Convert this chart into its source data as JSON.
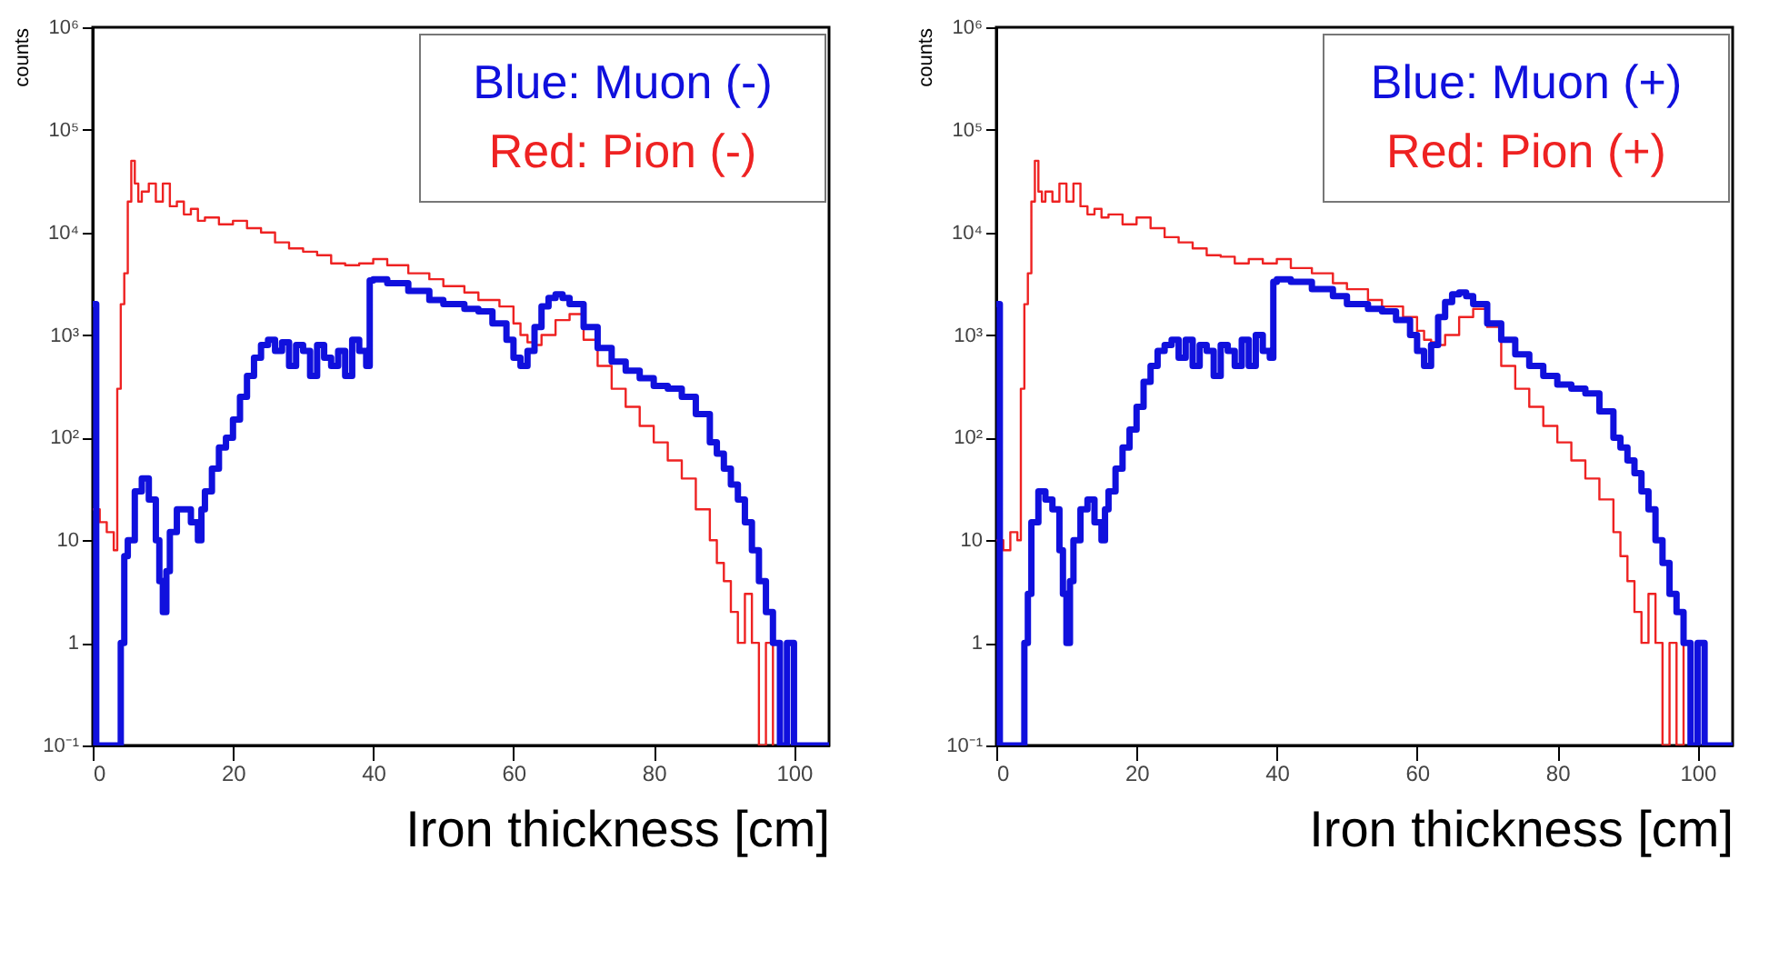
{
  "chart_data": [
    {
      "type": "step",
      "xlabel": "Iron thickness [cm]",
      "ylabel": "counts",
      "log": "y",
      "legend": "top right",
      "grid": false,
      "xlim": [
        0,
        105
      ],
      "xticks": [
        0,
        20,
        40,
        60,
        80,
        100
      ],
      "ylim": [
        0.1,
        1000000
      ],
      "yticks": [
        {
          "value": 0.1,
          "label": "10⁻¹"
        },
        1,
        10,
        {
          "value": 100,
          "label": "10²"
        },
        {
          "value": 1000,
          "label": "10³"
        },
        {
          "value": 10000,
          "label": "10⁴"
        },
        {
          "value": 100000,
          "label": "10⁵"
        },
        {
          "value": 1000000,
          "label": "10⁶"
        }
      ],
      "series": [
        {
          "name": "Red: Pion (-)",
          "color": "#ee2222",
          "x": [
            0,
            1,
            2,
            3,
            3.5,
            4,
            4.5,
            5,
            5.5,
            6,
            6.5,
            7,
            8,
            9,
            10,
            11,
            12,
            13,
            14,
            15,
            16,
            18,
            20,
            22,
            24,
            26,
            28,
            30,
            32,
            34,
            36,
            38,
            40,
            42,
            45,
            48,
            50,
            53,
            55,
            58,
            60,
            61,
            62,
            63,
            64,
            66,
            68,
            70,
            72,
            74,
            76,
            78,
            80,
            82,
            84,
            86,
            88,
            89,
            90,
            91,
            92,
            93,
            94,
            95,
            96,
            97
          ],
          "values": [
            20,
            15,
            12,
            8,
            300,
            2000,
            4000,
            20000,
            50000,
            30000,
            20000,
            25000,
            30000,
            20000,
            30000,
            18000,
            20000,
            15000,
            17000,
            13000,
            14000,
            12000,
            13000,
            11000,
            10000,
            8000,
            7000,
            6500,
            6000,
            5000,
            4800,
            5000,
            5500,
            4800,
            4000,
            3500,
            3000,
            2600,
            2200,
            1900,
            1300,
            1000,
            850,
            800,
            1000,
            1400,
            1600,
            900,
            500,
            300,
            200,
            130,
            90,
            60,
            40,
            20,
            10,
            6,
            4,
            2,
            1,
            3,
            1,
            0.1,
            1,
            0.1
          ]
        },
        {
          "name": "Blue: Muon (-)",
          "color": "#1010dd",
          "x": [
            0,
            0.5,
            4,
            4.5,
            5,
            6,
            7,
            8,
            9,
            9.5,
            10,
            10.5,
            11,
            12,
            13,
            14,
            15,
            15.5,
            16,
            17,
            18,
            19,
            20,
            21,
            22,
            23,
            24,
            25,
            26,
            27,
            28,
            29,
            30,
            31,
            32,
            33,
            34,
            35,
            36,
            37,
            38,
            39,
            39.5,
            40,
            42,
            45,
            48,
            50,
            53,
            55,
            57,
            59,
            60,
            61,
            62,
            63,
            64,
            65,
            66,
            67,
            68,
            70,
            72,
            74,
            76,
            78,
            80,
            82,
            84,
            86,
            88,
            89,
            90,
            91,
            92,
            93,
            94,
            95,
            96,
            97,
            98,
            99,
            100,
            101,
            105
          ],
          "values": [
            2000,
            0.1,
            1,
            7,
            10,
            30,
            40,
            25,
            10,
            4,
            2,
            5,
            12,
            20,
            20,
            15,
            10,
            20,
            30,
            50,
            80,
            100,
            150,
            250,
            400,
            600,
            800,
            900,
            700,
            850,
            500,
            800,
            700,
            400,
            800,
            600,
            500,
            700,
            400,
            900,
            700,
            500,
            3400,
            3500,
            3200,
            2700,
            2200,
            2000,
            1800,
            1700,
            1300,
            900,
            600,
            500,
            700,
            1200,
            1900,
            2300,
            2500,
            2300,
            2000,
            1200,
            750,
            550,
            450,
            380,
            320,
            300,
            250,
            170,
            90,
            70,
            50,
            35,
            25,
            15,
            8,
            4,
            2,
            1,
            0.1,
            1,
            0.1,
            0.1,
            0.1
          ]
        }
      ]
    },
    {
      "type": "step",
      "xlabel": "Iron thickness [cm]",
      "ylabel": "counts",
      "log": "y",
      "legend": "top right",
      "grid": false,
      "xlim": [
        0,
        105
      ],
      "xticks": [
        0,
        20,
        40,
        60,
        80,
        100
      ],
      "ylim": [
        0.1,
        1000000
      ],
      "yticks": [
        {
          "value": 0.1,
          "label": "10⁻¹"
        },
        1,
        10,
        {
          "value": 100,
          "label": "10²"
        },
        {
          "value": 1000,
          "label": "10³"
        },
        {
          "value": 10000,
          "label": "10⁴"
        },
        {
          "value": 100000,
          "label": "10⁵"
        },
        {
          "value": 1000000,
          "label": "10⁶"
        }
      ],
      "series": [
        {
          "name": "Red: Pion (+)",
          "color": "#ee2222",
          "x": [
            0,
            1,
            2,
            3,
            3.5,
            4,
            4.5,
            5,
            5.5,
            6,
            6.5,
            7,
            8,
            9,
            10,
            11,
            12,
            13,
            14,
            15,
            16,
            18,
            20,
            22,
            24,
            26,
            28,
            30,
            32,
            34,
            36,
            38,
            40,
            42,
            45,
            48,
            50,
            53,
            55,
            58,
            60,
            61,
            62,
            63,
            64,
            66,
            68,
            70,
            72,
            74,
            76,
            78,
            80,
            82,
            84,
            86,
            88,
            89,
            90,
            91,
            92,
            93,
            94,
            95,
            96,
            97,
            98
          ],
          "values": [
            10,
            8,
            12,
            10,
            300,
            2000,
            4000,
            20000,
            50000,
            25000,
            20000,
            25000,
            20000,
            30000,
            20000,
            30000,
            18000,
            15000,
            17000,
            14000,
            15000,
            12000,
            14000,
            11000,
            9000,
            8000,
            7000,
            6000,
            5800,
            5000,
            5500,
            5000,
            5500,
            4500,
            4000,
            3200,
            2800,
            2200,
            1900,
            1500,
            1100,
            900,
            850,
            800,
            1000,
            1500,
            1800,
            1200,
            500,
            300,
            200,
            130,
            90,
            60,
            40,
            25,
            12,
            7,
            4,
            2,
            1,
            3,
            1,
            0.1,
            1,
            0.1,
            1
          ]
        },
        {
          "name": "Blue: Muon (+)",
          "color": "#1010dd",
          "x": [
            0,
            0.5,
            4,
            4.5,
            5,
            6,
            7,
            8,
            9,
            9.5,
            10,
            10.5,
            11,
            12,
            13,
            14,
            15,
            15.5,
            16,
            17,
            18,
            19,
            20,
            21,
            22,
            23,
            24,
            25,
            26,
            27,
            28,
            29,
            30,
            31,
            32,
            33,
            34,
            35,
            36,
            37,
            38,
            39,
            39.5,
            40,
            42,
            45,
            48,
            50,
            53,
            55,
            57,
            59,
            60,
            61,
            62,
            63,
            64,
            65,
            66,
            67,
            68,
            70,
            72,
            74,
            76,
            78,
            80,
            82,
            84,
            86,
            88,
            89,
            90,
            91,
            92,
            93,
            94,
            95,
            96,
            97,
            98,
            99,
            100,
            101,
            105
          ],
          "values": [
            2000,
            0.1,
            1,
            3,
            15,
            30,
            25,
            20,
            8,
            3,
            1,
            4,
            10,
            20,
            25,
            15,
            10,
            20,
            30,
            50,
            80,
            120,
            200,
            350,
            500,
            700,
            800,
            900,
            600,
            900,
            500,
            800,
            700,
            400,
            800,
            700,
            500,
            900,
            500,
            1000,
            700,
            600,
            3300,
            3500,
            3300,
            2800,
            2400,
            2000,
            1800,
            1700,
            1400,
            1000,
            700,
            500,
            800,
            1500,
            2100,
            2500,
            2600,
            2400,
            2000,
            1300,
            900,
            650,
            500,
            400,
            330,
            300,
            270,
            180,
            100,
            80,
            60,
            45,
            30,
            20,
            10,
            6,
            3,
            2,
            1,
            0.1,
            1,
            0.1,
            0.1
          ]
        }
      ]
    }
  ]
}
